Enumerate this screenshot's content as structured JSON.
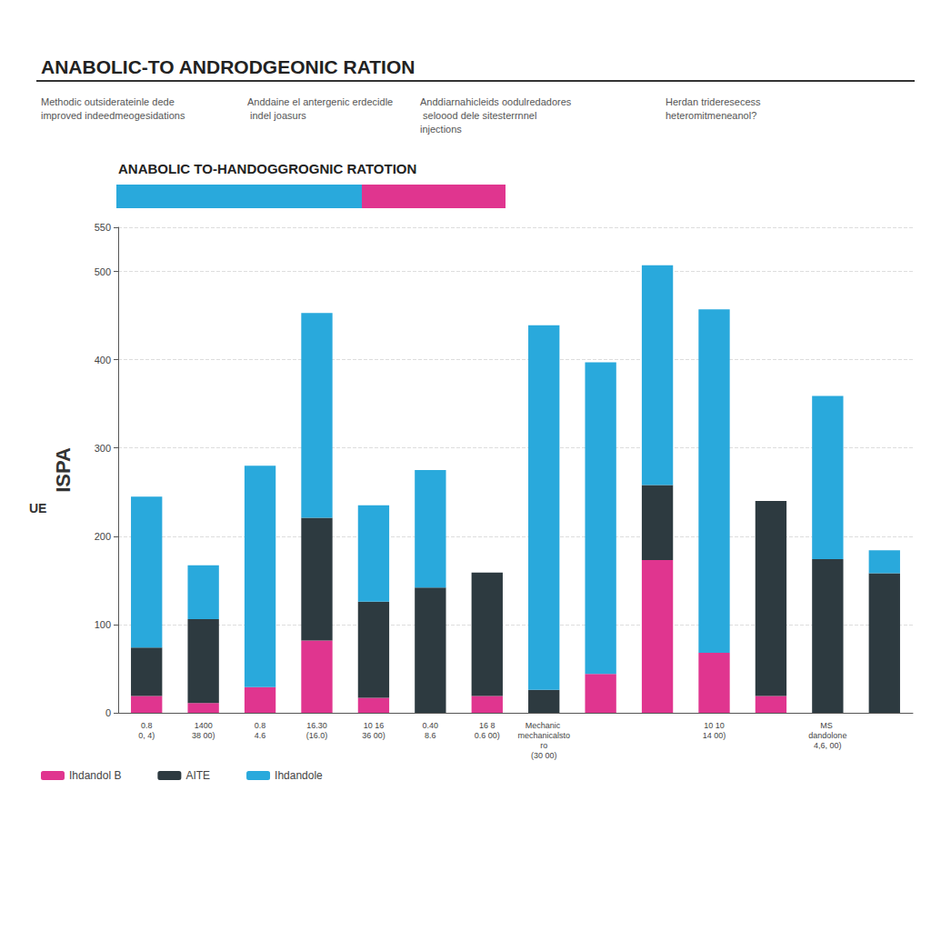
{
  "chart_data": {
    "type": "bar",
    "title": "ANABOLIC-TO ANDRODGEONIC RATION",
    "subtitle": "ANABOLIC TO-HANDOGGROGNIC RATOTION",
    "column_headers": [
      "Methodic outsiderateinle dede improved indeedmeogesidations",
      "Anddaine el antergenic erdecidle indel joasurs",
      "Anddiarnahicleids oodulredadores seloood dele sitesterrnnel injections",
      "Herdan trideresecess heteromitmeneanol?"
    ],
    "y_label": "ISPA",
    "annotations": [
      "UE"
    ],
    "categories": [
      "0.8\n0, 4)",
      "1400\n38 00)",
      "0.8\n4.6",
      "16.30\n(16.0)",
      "10 16\n36 00)",
      "0.40\n8.6",
      "16 8\n0.6 00)",
      "Mechanic mechanicalstoro\n(30 00)",
      null,
      null,
      "10 10\n14 00)",
      null,
      "MS dandolone\n4,6, 00)",
      null
    ],
    "series": [
      {
        "name": "Ihdandol B",
        "color": "#e0358f",
        "values": [
          19,
          11,
          29,
          82,
          17,
          0,
          19,
          0,
          44,
          173,
          68,
          19,
          0,
          0
        ]
      },
      {
        "name": "AITE",
        "color": "#2d3a40",
        "values": [
          55,
          95,
          0,
          139,
          109,
          142,
          140,
          26,
          0,
          85,
          0,
          221,
          174,
          158
        ]
      },
      {
        "name": "Ihdandole",
        "color": "#29a9dc",
        "values": [
          171,
          61,
          251,
          232,
          109,
          133,
          0,
          413,
          353,
          249,
          389,
          0,
          185,
          26
        ]
      }
    ],
    "ylim": [
      0,
      550
    ],
    "yticks": [
      0,
      100,
      200,
      300,
      400,
      500
    ],
    "stacked": true,
    "grid": true,
    "legend": "bottom"
  }
}
